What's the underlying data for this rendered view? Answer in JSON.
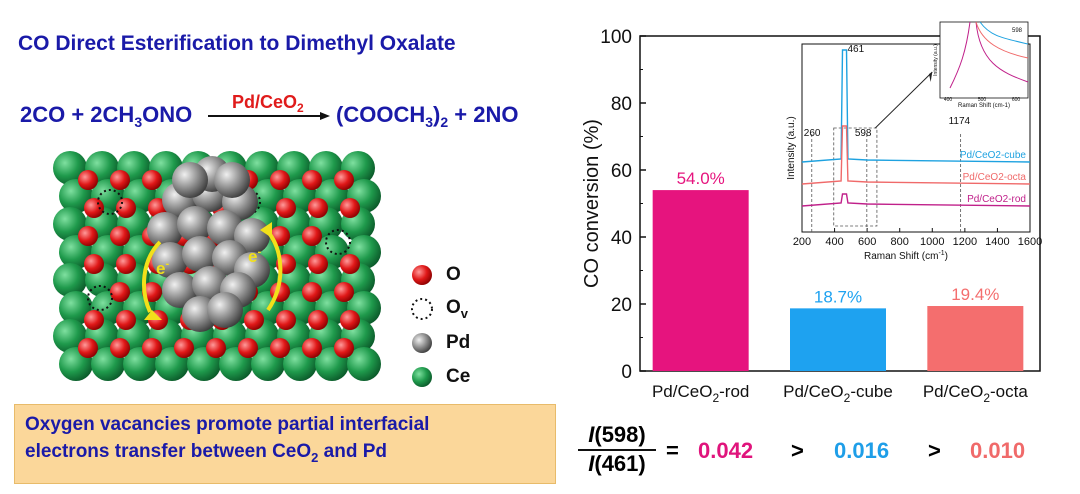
{
  "title": "CO Direct Esterification to Dimethyl Oxalate",
  "reaction": {
    "left": "2CO + 2CH",
    "left_sub": "3",
    "left_end": "ONO",
    "catalyst_main": "Pd/CeO",
    "catalyst_sub": "2",
    "right_open": "(COOCH",
    "right_sub1": "3",
    "right_close": ")",
    "right_sub2": "2",
    "right_end": " + 2NO"
  },
  "structure_legend": [
    {
      "symbol": "O",
      "sub": "",
      "icon": "red-sphere-icon",
      "color": "#e21f1f"
    },
    {
      "symbol": "O",
      "sub": "v",
      "icon": "dotted-circle-icon",
      "color": "#000000"
    },
    {
      "symbol": "Pd",
      "sub": "",
      "icon": "gray-sphere-icon",
      "color": "#8a8a8a"
    },
    {
      "symbol": "Ce",
      "sub": "",
      "icon": "green-sphere-icon",
      "color": "#1e9a4a"
    }
  ],
  "electron_label": "e",
  "electron_sup": "-",
  "conclusion": {
    "line1": "Oxygen vacancies promote partial interfacial",
    "line2_a": "electrons transfer between CeO",
    "line2_sub": "2",
    "line2_b": " and Pd"
  },
  "ratio": {
    "numerator": "I(598)",
    "denominator": "I(461)",
    "num_i": "I",
    "num_rest": "(598)",
    "den_i": "I",
    "den_rest": "(461)",
    "equals": "=",
    "gt1": ">",
    "gt2": ">",
    "values": [
      "0.042",
      "0.016",
      "0.010"
    ],
    "colors": [
      "#e0147c",
      "#1e9ee8",
      "#f06a6a"
    ]
  },
  "chart_data": [
    {
      "type": "bar",
      "ylabel": "CO conversion (%)",
      "ylim": [
        0,
        100
      ],
      "yticks": [
        0,
        20,
        40,
        60,
        80,
        100
      ],
      "categories": [
        "Pd/CeO2-rod",
        "Pd/CeO2-cube",
        "Pd/CeO2-octa"
      ],
      "category_parts": [
        {
          "a": "Pd/CeO",
          "sub": "2",
          "b": "-rod"
        },
        {
          "a": "Pd/CeO",
          "sub": "2",
          "b": "-cube"
        },
        {
          "a": "Pd/CeO",
          "sub": "2",
          "b": "-octa"
        }
      ],
      "values": [
        54.0,
        18.7,
        19.4
      ],
      "data_labels": [
        "54.0%",
        "18.7%",
        "19.4%"
      ],
      "colors": [
        "#e6147e",
        "#1ea2f0",
        "#f46e6e"
      ]
    },
    {
      "type": "line",
      "xlabel": "Raman Shift (cm",
      "xlabel_sup": "-1",
      "xlabel_end": ")",
      "ylabel": "Intensity (a.u.)",
      "xlim": [
        200,
        1600
      ],
      "xticks": [
        200,
        400,
        600,
        800,
        1000,
        1200,
        1400,
        1600
      ],
      "annotations": [
        "461",
        "260",
        "598",
        "1174"
      ],
      "series": [
        {
          "name": "Pd/CeO2-cube",
          "color": "#1ea2e0"
        },
        {
          "name": "Pd/CeO2-octa",
          "color": "#f06a6a"
        },
        {
          "name": "Pd/CeO2-rod",
          "color": "#c0208a"
        }
      ],
      "inset_peak_label": "598",
      "inset_xticks": [
        400,
        500,
        600
      ],
      "inset_xlabel": "Raman Shift (cm-1)",
      "inset_ylabel": "Intensity (a.u.)"
    }
  ]
}
